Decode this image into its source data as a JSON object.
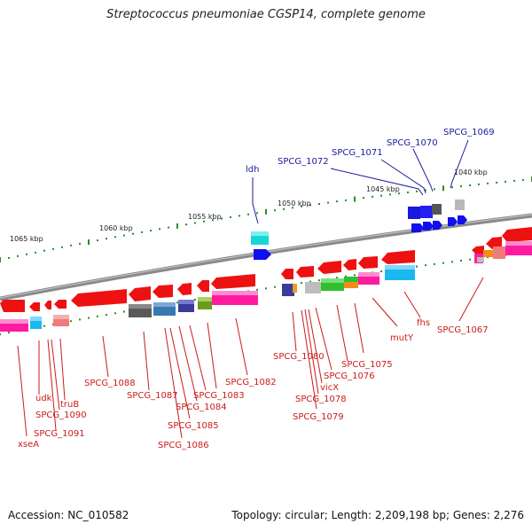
{
  "title": "Streptococcus pneumoniae CGSP14, complete genome",
  "footer": {
    "accession": "Accession: NC_010582",
    "stats": "Topology: circular; Length: 2,209,198 bp; Genes: 2,276"
  },
  "colors": {
    "forward_gene": "#1a1aff",
    "reverse_gene": "#ff1a1a",
    "tick": "#2e8b2e",
    "backbone": "#888888",
    "forward_label": "#1a1aa0",
    "reverse_label": "#cc1a1a"
  },
  "kbp_labels": [
    "1065 kbp",
    "1060 kbp",
    "1055 kbp",
    "1050 kbp",
    "1045 kbp",
    "1040 kbp"
  ],
  "forward_labels": [
    "ldh",
    "SPCG_1072",
    "SPCG_1071",
    "SPCG_1070",
    "SPCG_1069"
  ],
  "reverse_labels": [
    "xseA",
    "SPCG_1091",
    "SPCG_1090",
    "udk",
    "truB",
    "SPCG_1088",
    "SPCG_1087",
    "SPCG_1086",
    "SPCG_1085",
    "SPCG_1084",
    "SPCG_1083",
    "SPCG_1082",
    "SPCG_1080",
    "SPCG_1079",
    "SPCG_1078",
    "vicX",
    "SPCG_1076",
    "SPCG_1075",
    "mutY",
    "fhs",
    "SPCG_1067"
  ]
}
